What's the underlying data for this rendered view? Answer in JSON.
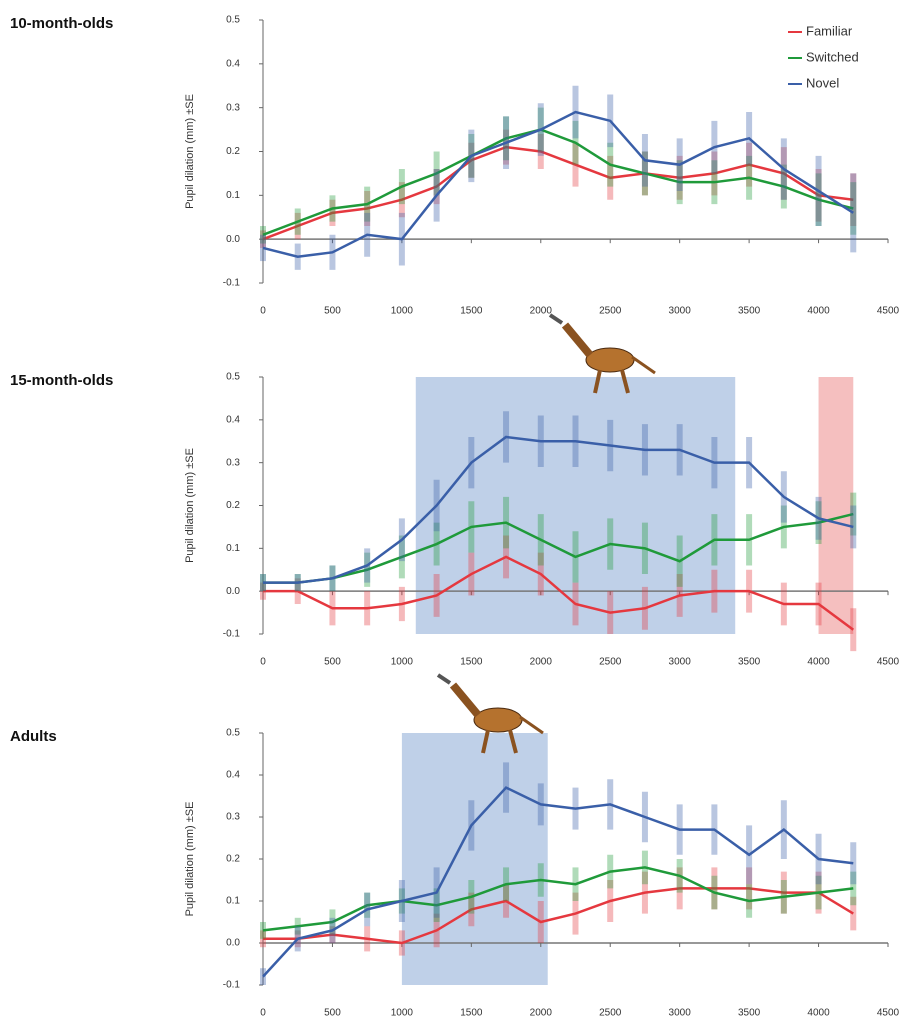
{
  "chart_data": [
    {
      "type": "line",
      "title": "10-month-olds",
      "y_label": "Pupil dilation (mm) ±SE",
      "x": [
        0,
        250,
        500,
        750,
        1000,
        1250,
        1500,
        1750,
        2000,
        2250,
        2500,
        2750,
        3000,
        3250,
        3500,
        3750,
        4000,
        4250
      ],
      "xlim": [
        0,
        4500
      ],
      "xticks": [
        0,
        500,
        1000,
        1500,
        2000,
        2500,
        3000,
        3500,
        4000,
        4500
      ],
      "ylim": [
        -0.1,
        0.5
      ],
      "yticks": [
        0.5,
        0.4,
        0.3,
        0.2,
        0.1,
        {
          "value": 0,
          "label": "0.0"
        },
        -0.1
      ],
      "legend": "upper right",
      "series": [
        {
          "name": "Familiar",
          "color": "#e5383f",
          "values": [
            0,
            0.03,
            0.06,
            0.07,
            0.09,
            0.12,
            0.18,
            0.21,
            0.2,
            0.17,
            0.14,
            0.15,
            0.14,
            0.15,
            0.17,
            0.15,
            0.1,
            0.09
          ],
          "se": [
            0.02,
            0.03,
            0.03,
            0.04,
            0.04,
            0.04,
            0.04,
            0.04,
            0.04,
            0.05,
            0.05,
            0.05,
            0.05,
            0.05,
            0.05,
            0.06,
            0.06,
            0.06
          ]
        },
        {
          "name": "Switched",
          "color": "#1f9a3a",
          "values": [
            0.01,
            0.04,
            0.07,
            0.08,
            0.12,
            0.15,
            0.19,
            0.23,
            0.25,
            0.22,
            0.17,
            0.15,
            0.13,
            0.13,
            0.14,
            0.12,
            0.09,
            0.07
          ],
          "se": [
            0.02,
            0.03,
            0.03,
            0.04,
            0.04,
            0.05,
            0.05,
            0.05,
            0.05,
            0.05,
            0.05,
            0.05,
            0.05,
            0.05,
            0.05,
            0.05,
            0.06,
            0.06
          ]
        },
        {
          "name": "Novel",
          "color": "#3a5fa8",
          "values": [
            -0.02,
            -0.04,
            -0.03,
            0.01,
            0.0,
            0.1,
            0.19,
            0.22,
            0.25,
            0.29,
            0.27,
            0.18,
            0.17,
            0.21,
            0.23,
            0.16,
            0.11,
            0.06
          ],
          "se": [
            0.03,
            0.03,
            0.04,
            0.05,
            0.06,
            0.06,
            0.06,
            0.06,
            0.06,
            0.06,
            0.06,
            0.06,
            0.06,
            0.06,
            0.06,
            0.07,
            0.08,
            0.09
          ]
        }
      ]
    },
    {
      "type": "line",
      "title": "15-month-olds",
      "y_label": "Pupil dilation (mm) ±SE",
      "x": [
        0,
        250,
        500,
        750,
        1000,
        1250,
        1500,
        1750,
        2000,
        2250,
        2500,
        2750,
        3000,
        3250,
        3500,
        3750,
        4000,
        4250
      ],
      "xlim": [
        0,
        4500
      ],
      "xticks": [
        0,
        500,
        1000,
        1500,
        2000,
        2500,
        3000,
        3500,
        4000,
        4500
      ],
      "ylim": [
        -0.1,
        0.5
      ],
      "yticks": [
        0.5,
        0.4,
        0.3,
        0.2,
        0.1,
        {
          "value": 0,
          "label": "0.0"
        },
        -0.1
      ],
      "shaded_regions": [
        {
          "x": [
            1100,
            3400
          ],
          "color": "#a9c0e0"
        },
        {
          "x": [
            4000,
            4250
          ],
          "color": "#f2a9a9"
        }
      ],
      "series": [
        {
          "color": "#e5383f",
          "values": [
            0,
            0,
            -0.04,
            -0.04,
            -0.03,
            -0.01,
            0.04,
            0.08,
            0.04,
            -0.03,
            -0.05,
            -0.04,
            -0.01,
            0.0,
            0.0,
            -0.03,
            -0.03,
            -0.09
          ],
          "se": [
            0.02,
            0.03,
            0.04,
            0.04,
            0.04,
            0.05,
            0.05,
            0.05,
            0.05,
            0.05,
            0.05,
            0.05,
            0.05,
            0.05,
            0.05,
            0.05,
            0.05,
            0.05
          ]
        },
        {
          "color": "#1f9a3a",
          "values": [
            0.02,
            0.02,
            0.03,
            0.05,
            0.08,
            0.11,
            0.15,
            0.16,
            0.12,
            0.08,
            0.11,
            0.1,
            0.07,
            0.12,
            0.12,
            0.15,
            0.16,
            0.18
          ],
          "se": [
            0.02,
            0.02,
            0.03,
            0.04,
            0.05,
            0.05,
            0.06,
            0.06,
            0.06,
            0.06,
            0.06,
            0.06,
            0.06,
            0.06,
            0.06,
            0.05,
            0.05,
            0.05
          ]
        },
        {
          "color": "#3a5fa8",
          "values": [
            0.02,
            0.02,
            0.03,
            0.06,
            0.12,
            0.2,
            0.3,
            0.36,
            0.35,
            0.35,
            0.34,
            0.33,
            0.33,
            0.3,
            0.3,
            0.22,
            0.17,
            0.15
          ],
          "se": [
            0.02,
            0.02,
            0.03,
            0.04,
            0.05,
            0.06,
            0.06,
            0.06,
            0.06,
            0.06,
            0.06,
            0.06,
            0.06,
            0.06,
            0.06,
            0.06,
            0.05,
            0.05
          ]
        }
      ]
    },
    {
      "type": "line",
      "title": "Adults",
      "y_label": "Pupil dilation (mm) ±SE",
      "x": [
        0,
        250,
        500,
        750,
        1000,
        1250,
        1500,
        1750,
        2000,
        2250,
        2500,
        2750,
        3000,
        3250,
        3500,
        3750,
        4000,
        4250
      ],
      "xlim": [
        0,
        4500
      ],
      "xticks": [
        0,
        500,
        1000,
        1500,
        2000,
        2500,
        3000,
        3500,
        4000,
        4500
      ],
      "ylim": [
        -0.1,
        0.5
      ],
      "yticks": [
        0.5,
        0.4,
        0.3,
        0.2,
        0.1,
        {
          "value": 0,
          "label": "0.0"
        },
        -0.1
      ],
      "shaded_regions": [
        {
          "x": [
            1000,
            2050
          ],
          "color": "#a9c0e0"
        }
      ],
      "series": [
        {
          "color": "#e5383f",
          "values": [
            0.01,
            0.01,
            0.02,
            0.01,
            0.0,
            0.03,
            0.08,
            0.1,
            0.05,
            0.07,
            0.1,
            0.12,
            0.13,
            0.13,
            0.13,
            0.12,
            0.12,
            0.07
          ],
          "se": [
            0.02,
            0.02,
            0.02,
            0.03,
            0.03,
            0.04,
            0.04,
            0.04,
            0.05,
            0.05,
            0.05,
            0.05,
            0.05,
            0.05,
            0.05,
            0.05,
            0.05,
            0.04
          ]
        },
        {
          "color": "#1f9a3a",
          "values": [
            0.03,
            0.04,
            0.05,
            0.09,
            0.1,
            0.09,
            0.11,
            0.14,
            0.15,
            0.14,
            0.17,
            0.18,
            0.16,
            0.12,
            0.1,
            0.11,
            0.12,
            0.13
          ],
          "se": [
            0.02,
            0.02,
            0.03,
            0.03,
            0.03,
            0.04,
            0.04,
            0.04,
            0.04,
            0.04,
            0.04,
            0.04,
            0.04,
            0.04,
            0.04,
            0.04,
            0.04,
            0.04
          ]
        },
        {
          "color": "#3a5fa8",
          "values": [
            -0.08,
            0.01,
            0.03,
            0.08,
            0.1,
            0.12,
            0.28,
            0.37,
            0.33,
            0.32,
            0.33,
            0.3,
            0.27,
            0.27,
            0.21,
            0.27,
            0.2,
            0.19
          ],
          "se": [
            0.02,
            0.03,
            0.03,
            0.04,
            0.05,
            0.06,
            0.06,
            0.06,
            0.05,
            0.05,
            0.06,
            0.06,
            0.06,
            0.06,
            0.07,
            0.07,
            0.06,
            0.05
          ]
        }
      ]
    }
  ]
}
